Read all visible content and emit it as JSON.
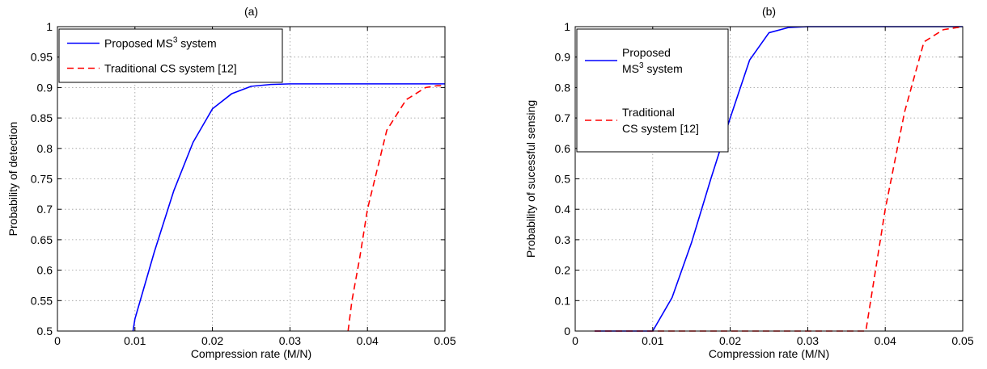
{
  "chart_data": [
    {
      "type": "line",
      "title": "(a)",
      "xlabel": "Compression rate (M/N)",
      "ylabel": "Probability of detection",
      "xlim": [
        0,
        0.05
      ],
      "ylim": [
        0.5,
        1
      ],
      "xticks": [
        0,
        0.01,
        0.02,
        0.03,
        0.04,
        0.05
      ],
      "xtick_labels": [
        "0",
        "0.01",
        "0.02",
        "0.03",
        "0.04",
        "0.05"
      ],
      "yticks": [
        0.5,
        0.55,
        0.6,
        0.65,
        0.7,
        0.75,
        0.8,
        0.85,
        0.9,
        0.95,
        1
      ],
      "ytick_labels": [
        "0.5",
        "0.55",
        "0.6",
        "0.65",
        "0.7",
        "0.75",
        "0.8",
        "0.85",
        "0.9",
        "0.95",
        "1"
      ],
      "grid": true,
      "legend_position": "top-left",
      "series": [
        {
          "name_lines": [
            "Proposed MS3 system"
          ],
          "name_parts": [
            [
              "Proposed MS",
              "3",
              " system"
            ]
          ],
          "color": "#0000ff",
          "style": "solid",
          "x": [
            0.00975,
            0.01,
            0.0125,
            0.015,
            0.0175,
            0.02,
            0.0225,
            0.025,
            0.0275,
            0.03,
            0.035,
            0.04,
            0.045,
            0.05
          ],
          "y": [
            0.5,
            0.52,
            0.63,
            0.73,
            0.81,
            0.865,
            0.89,
            0.902,
            0.905,
            0.906,
            0.906,
            0.906,
            0.906,
            0.906
          ]
        },
        {
          "name_lines": [
            "Traditional CS system [12]"
          ],
          "name_parts": [
            [
              "Traditional CS system [12]",
              "",
              ""
            ]
          ],
          "color": "#ff0000",
          "style": "dashed",
          "x": [
            0.0375,
            0.038,
            0.039,
            0.04,
            0.0425,
            0.045,
            0.0475,
            0.049,
            0.05
          ],
          "y": [
            0.5,
            0.55,
            0.62,
            0.7,
            0.83,
            0.88,
            0.9,
            0.903,
            0.903
          ]
        }
      ]
    },
    {
      "type": "line",
      "title": "(b)",
      "xlabel": "Compression rate (M/N)",
      "ylabel": "Probability of sucessful sensing",
      "xlim": [
        0,
        0.05
      ],
      "ylim": [
        0,
        1
      ],
      "xticks": [
        0,
        0.01,
        0.02,
        0.03,
        0.04,
        0.05
      ],
      "xtick_labels": [
        "0",
        "0.01",
        "0.02",
        "0.03",
        "0.04",
        "0.05"
      ],
      "yticks": [
        0,
        0.1,
        0.2,
        0.3,
        0.4,
        0.5,
        0.6,
        0.7,
        0.8,
        0.9,
        1
      ],
      "ytick_labels": [
        "0",
        "0.1",
        "0.2",
        "0.3",
        "0.4",
        "0.5",
        "0.6",
        "0.7",
        "0.8",
        "0.9",
        "1"
      ],
      "grid": true,
      "legend_position": "top-left",
      "series": [
        {
          "name_lines": [
            "Proposed",
            "MS3 system"
          ],
          "name_parts": [
            [
              "Proposed",
              "",
              ""
            ],
            [
              "MS",
              "3",
              " system"
            ]
          ],
          "color": "#0000ff",
          "style": "solid",
          "x": [
            0.0025,
            0.005,
            0.0075,
            0.01,
            0.0125,
            0.015,
            0.0175,
            0.02,
            0.0225,
            0.025,
            0.0275,
            0.03,
            0.035,
            0.04,
            0.045,
            0.05
          ],
          "y": [
            0,
            0,
            0,
            0,
            0.11,
            0.29,
            0.5,
            0.7,
            0.89,
            0.98,
            0.997,
            1,
            1,
            1,
            1,
            1
          ]
        },
        {
          "name_lines": [
            "Traditional",
            "CS system [12]"
          ],
          "name_parts": [
            [
              "Traditional",
              "",
              ""
            ],
            [
              "CS system [12]",
              "",
              ""
            ]
          ],
          "color": "#ff0000",
          "style": "dashed",
          "x": [
            0.0025,
            0.01,
            0.02,
            0.03,
            0.0375,
            0.04,
            0.0425,
            0.045,
            0.0475,
            0.05
          ],
          "y": [
            0,
            0,
            0,
            0,
            0,
            0.4,
            0.72,
            0.95,
            0.99,
            1
          ]
        }
      ]
    }
  ]
}
